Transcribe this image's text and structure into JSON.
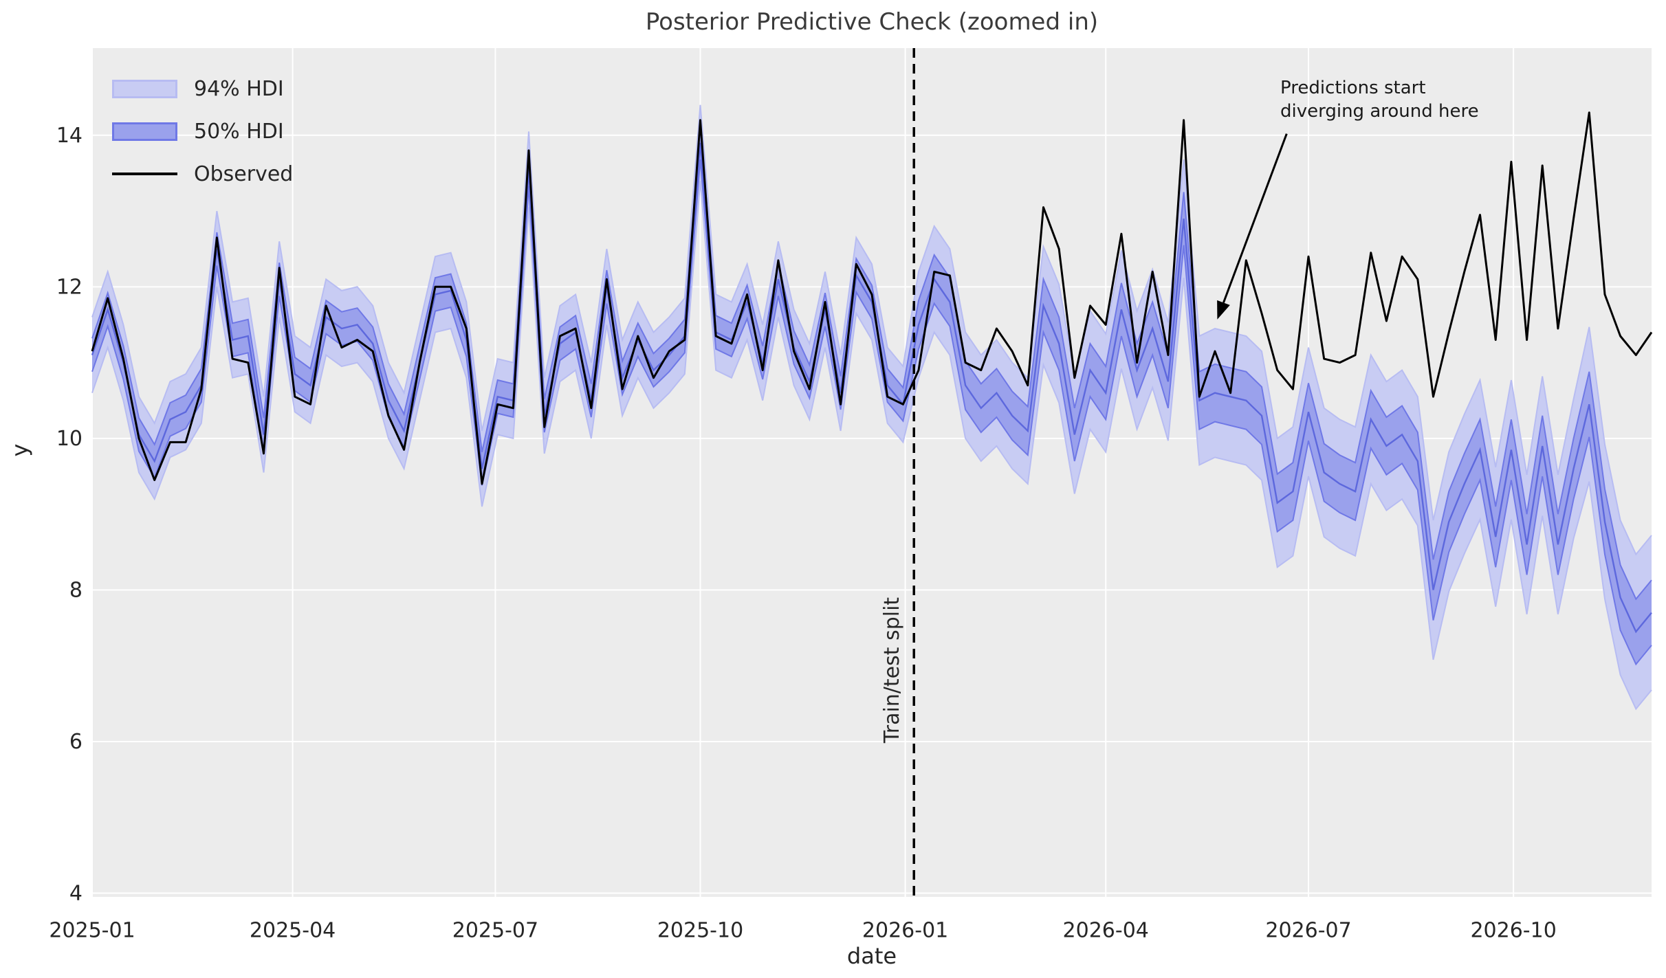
{
  "title": "Posterior Predictive Check (zoomed in)",
  "axes": {
    "xlabel": "date",
    "ylabel": "y"
  },
  "legend": [
    {
      "label": "94% HDI"
    },
    {
      "label": "50% HDI"
    },
    {
      "label": "Observed"
    }
  ],
  "annotations": {
    "diverge_line1": "Predictions start",
    "diverge_line2": "diverging around here",
    "split_label": "Train/test split"
  },
  "colors": {
    "axes_background": "#ececec",
    "gridline": "#ffffff",
    "hdi94_fill": "#c8ccf3",
    "hdi94_edge": "#b7bcf2",
    "hdi50_fill": "#9aa1ec",
    "hdi50_edge": "#6f78e6",
    "median_line": "#5d68dd",
    "observed_line": "#000000",
    "split_line": "#000000",
    "text": "#262626"
  },
  "chart_data": {
    "type": "line",
    "title": "Posterior Predictive Check (zoomed in)",
    "xlabel": "date",
    "ylabel": "y",
    "x_unit": "weeks since 2025-01-01, weekly points",
    "n_points": 101,
    "xlim_weeks": [
      0,
      100
    ],
    "ylim": [
      3.95,
      15.15
    ],
    "grid": true,
    "legend_position": "upper left",
    "y_ticks": [
      4,
      6,
      8,
      10,
      12,
      14
    ],
    "x_ticks": [
      {
        "label": "2025-01",
        "week": 0
      },
      {
        "label": "2025-04",
        "week": 12.857
      },
      {
        "label": "2025-07",
        "week": 25.857
      },
      {
        "label": "2025-10",
        "week": 39.0
      },
      {
        "label": "2026-01",
        "week": 52.143
      },
      {
        "label": "2026-04",
        "week": 65.0
      },
      {
        "label": "2026-07",
        "week": 78.0
      },
      {
        "label": "2026-10",
        "week": 91.143
      }
    ],
    "train_test_split_week": 52.7,
    "annotation_arrow": {
      "from_week": 76.6,
      "from_value": 14.02,
      "to_week": 72.15,
      "to_value": 11.57
    },
    "observed": [
      11.15,
      11.85,
      11.05,
      10.0,
      9.45,
      9.95,
      9.95,
      10.65,
      12.65,
      11.05,
      11.0,
      9.8,
      12.25,
      10.55,
      10.45,
      11.75,
      11.2,
      11.3,
      11.15,
      10.3,
      9.85,
      11.0,
      12.0,
      12.0,
      11.45,
      9.4,
      10.45,
      10.4,
      13.8,
      10.15,
      11.35,
      11.45,
      10.4,
      12.1,
      10.65,
      11.35,
      10.8,
      11.15,
      11.3,
      14.2,
      11.35,
      11.25,
      11.9,
      10.9,
      12.35,
      11.15,
      10.65,
      11.8,
      10.45,
      12.3,
      11.9,
      10.55,
      10.45,
      10.9,
      12.2,
      12.15,
      11.0,
      10.9,
      11.45,
      11.15,
      10.7,
      13.05,
      12.5,
      10.8,
      11.75,
      11.5,
      12.7,
      11.0,
      12.2,
      11.1,
      14.2,
      10.55,
      11.15,
      10.6,
      12.35,
      11.65,
      10.9,
      10.65,
      12.4,
      11.05,
      11.0,
      11.1,
      12.45,
      11.55,
      12.4,
      12.1,
      10.55,
      11.4,
      12.2,
      12.95,
      11.3,
      13.65,
      11.3,
      13.6,
      11.45,
      12.9,
      14.3,
      11.9,
      11.35,
      11.1,
      11.4
    ],
    "predicted_median": [
      11.1,
      11.7,
      11.0,
      10.05,
      9.7,
      10.25,
      10.35,
      10.7,
      12.5,
      11.3,
      11.35,
      10.05,
      12.1,
      10.85,
      10.7,
      11.6,
      11.45,
      11.5,
      11.25,
      10.5,
      10.1,
      11.0,
      11.9,
      11.95,
      11.3,
      9.6,
      10.55,
      10.5,
      13.55,
      10.3,
      11.25,
      11.4,
      10.5,
      12.0,
      10.8,
      11.3,
      10.9,
      11.1,
      11.35,
      13.9,
      11.4,
      11.3,
      11.8,
      11.0,
      12.1,
      11.2,
      10.75,
      11.7,
      10.6,
      12.15,
      11.8,
      10.7,
      10.45,
      11.5,
      12.1,
      11.8,
      10.7,
      10.4,
      10.6,
      10.3,
      10.1,
      11.75,
      11.25,
      10.05,
      10.9,
      10.6,
      11.7,
      10.9,
      11.45,
      10.75,
      12.9,
      10.5,
      10.6,
      10.55,
      10.5,
      10.3,
      9.15,
      9.3,
      10.35,
      9.55,
      9.4,
      9.3,
      10.25,
      9.9,
      10.05,
      9.7,
      8.0,
      8.9,
      9.4,
      9.85,
      8.7,
      9.85,
      8.6,
      9.9,
      8.6,
      9.6,
      10.45,
      8.9,
      7.9,
      7.45,
      7.7
    ],
    "hdi50_halfwidth": [
      0.22,
      0.22,
      0.22,
      0.22,
      0.22,
      0.22,
      0.22,
      0.22,
      0.22,
      0.22,
      0.22,
      0.22,
      0.22,
      0.22,
      0.22,
      0.22,
      0.22,
      0.22,
      0.22,
      0.22,
      0.22,
      0.22,
      0.22,
      0.22,
      0.22,
      0.22,
      0.22,
      0.22,
      0.22,
      0.22,
      0.22,
      0.22,
      0.22,
      0.22,
      0.22,
      0.22,
      0.22,
      0.22,
      0.22,
      0.22,
      0.22,
      0.22,
      0.22,
      0.22,
      0.22,
      0.22,
      0.22,
      0.22,
      0.22,
      0.22,
      0.22,
      0.22,
      0.22,
      0.32,
      0.32,
      0.32,
      0.32,
      0.32,
      0.32,
      0.32,
      0.32,
      0.35,
      0.35,
      0.35,
      0.35,
      0.35,
      0.35,
      0.35,
      0.35,
      0.35,
      0.35,
      0.38,
      0.38,
      0.38,
      0.38,
      0.38,
      0.38,
      0.38,
      0.38,
      0.38,
      0.38,
      0.38,
      0.38,
      0.38,
      0.38,
      0.38,
      0.4,
      0.4,
      0.4,
      0.4,
      0.4,
      0.4,
      0.4,
      0.4,
      0.4,
      0.4,
      0.43,
      0.43,
      0.43,
      0.43,
      0.43
    ],
    "hdi94_halfwidth": [
      0.5,
      0.5,
      0.5,
      0.5,
      0.5,
      0.5,
      0.5,
      0.5,
      0.5,
      0.5,
      0.5,
      0.5,
      0.5,
      0.5,
      0.5,
      0.5,
      0.5,
      0.5,
      0.5,
      0.5,
      0.5,
      0.5,
      0.5,
      0.5,
      0.5,
      0.5,
      0.5,
      0.5,
      0.5,
      0.5,
      0.5,
      0.5,
      0.5,
      0.5,
      0.5,
      0.5,
      0.5,
      0.5,
      0.5,
      0.5,
      0.5,
      0.5,
      0.5,
      0.5,
      0.5,
      0.5,
      0.5,
      0.5,
      0.5,
      0.5,
      0.5,
      0.5,
      0.5,
      0.7,
      0.7,
      0.7,
      0.7,
      0.7,
      0.7,
      0.7,
      0.7,
      0.78,
      0.78,
      0.78,
      0.78,
      0.78,
      0.78,
      0.78,
      0.78,
      0.78,
      0.78,
      0.85,
      0.85,
      0.85,
      0.85,
      0.85,
      0.85,
      0.85,
      0.85,
      0.85,
      0.85,
      0.85,
      0.85,
      0.85,
      0.85,
      0.85,
      0.92,
      0.92,
      0.92,
      0.92,
      0.92,
      0.92,
      0.92,
      0.92,
      0.92,
      0.92,
      1.02,
      1.02,
      1.02,
      1.02,
      1.02
    ]
  }
}
